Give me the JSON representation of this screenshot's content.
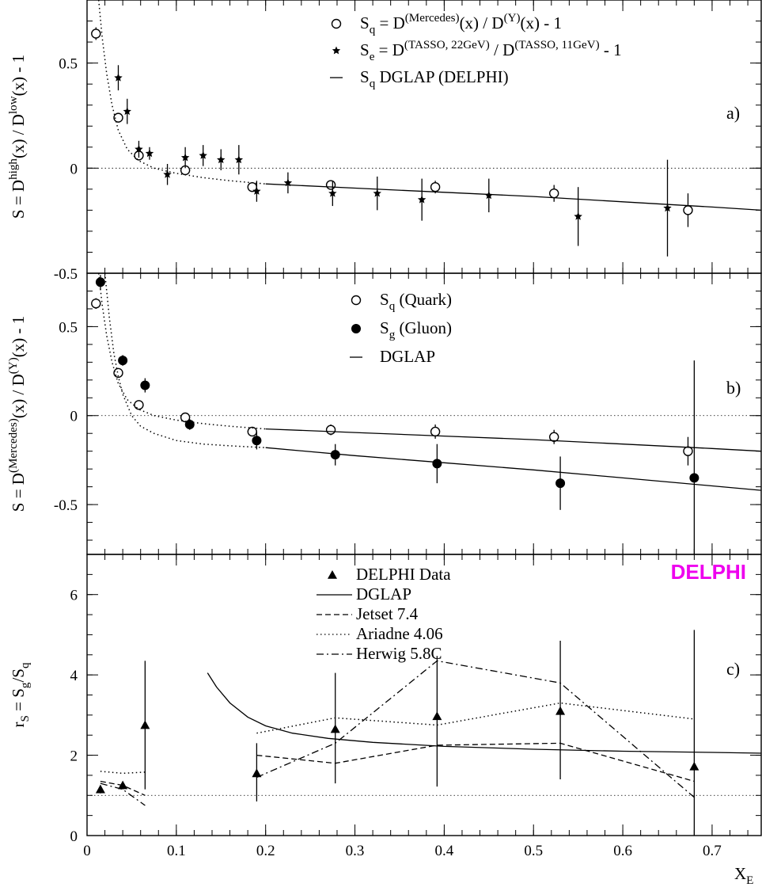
{
  "chart_data": [
    {
      "type": "scatter",
      "panel_label": "a)",
      "ylabel_html": "S = D<sup>high</sup>(x) / D<sup>low</sup>(x) - 1",
      "yticks": [
        "0.5",
        "0",
        "-0.5"
      ],
      "ylim": [
        -0.5,
        0.8
      ],
      "xlim": [
        0,
        0.755
      ],
      "legend": [
        {
          "marker": "open-circle",
          "html": "S<sub>q</sub> = D<sup>(Mercedes)</sup>(x) / D<sup>(Y)</sup>(x) - 1"
        },
        {
          "marker": "star",
          "html": "S<sub>e</sub> = D<sup>(TASSO, 22GeV)</sup> / D<sup>(TASSO, 11GeV)</sup> - 1"
        },
        {
          "marker": "solid-line",
          "html": "S<sub>q</sub>  DGLAP (DELPHI)"
        }
      ],
      "series": [
        {
          "name": "S_q = D(Mercedes)(x) / D(Y)(x) - 1",
          "marker": "open-circle",
          "x": [
            0.01,
            0.035,
            0.058,
            0.11,
            0.185,
            0.273,
            0.39,
            0.523,
            0.673
          ],
          "y": [
            0.64,
            0.24,
            0.06,
            -0.01,
            -0.09,
            -0.08,
            -0.09,
            -0.12,
            -0.2
          ],
          "err": [
            0.03,
            0.02,
            0.02,
            0.02,
            0.02,
            0.02,
            0.03,
            0.04,
            0.08
          ]
        },
        {
          "name": "S_e = D(TASSO, 22GeV) / D(TASSO, 11GeV) - 1",
          "marker": "star",
          "x": [
            0.035,
            0.045,
            0.058,
            0.07,
            0.09,
            0.11,
            0.13,
            0.15,
            0.17,
            0.19,
            0.225,
            0.275,
            0.325,
            0.375,
            0.45,
            0.55,
            0.65
          ],
          "y": [
            0.43,
            0.27,
            0.09,
            0.07,
            -0.03,
            0.05,
            0.06,
            0.04,
            0.04,
            -0.11,
            -0.07,
            -0.12,
            -0.12,
            -0.15,
            -0.13,
            -0.23,
            -0.19
          ],
          "err": [
            0.06,
            0.06,
            0.04,
            0.03,
            0.05,
            0.05,
            0.05,
            0.05,
            0.07,
            0.05,
            0.05,
            0.06,
            0.08,
            0.1,
            0.08,
            0.14,
            0.23
          ]
        },
        {
          "name": "S_q DGLAP (DELPHI)",
          "style": "solid",
          "x": [
            0.2,
            0.3,
            0.4,
            0.5,
            0.6,
            0.7,
            0.755
          ],
          "y": [
            -0.075,
            -0.095,
            -0.115,
            -0.135,
            -0.16,
            -0.185,
            -0.2
          ]
        },
        {
          "name": "S_q curve",
          "style": "dotted",
          "x": [
            0.013,
            0.017,
            0.022,
            0.028,
            0.035,
            0.045,
            0.058,
            0.075,
            0.1,
            0.13,
            0.16,
            0.2
          ],
          "y": [
            0.8,
            0.62,
            0.45,
            0.3,
            0.18,
            0.09,
            0.035,
            0.0,
            -0.025,
            -0.045,
            -0.06,
            -0.075
          ]
        }
      ]
    },
    {
      "type": "scatter",
      "panel_label": "b)",
      "ylabel_html": "S = D<sup>(Mercedes)</sup>(x) / D<sup>(Y)</sup>(x) - 1",
      "yticks": [
        "0.5",
        "0",
        "-0.5"
      ],
      "ylim": [
        -0.78,
        0.8
      ],
      "xlim": [
        0,
        0.755
      ],
      "legend": [
        {
          "marker": "open-circle",
          "html": "S<sub>q</sub> (Quark)"
        },
        {
          "marker": "filled-circle",
          "html": "S<sub>g</sub> (Gluon)"
        },
        {
          "marker": "solid-line",
          "html": "DGLAP"
        }
      ],
      "series": [
        {
          "name": "S_q (Quark)",
          "marker": "open-circle",
          "x": [
            0.01,
            0.035,
            0.058,
            0.11,
            0.185,
            0.273,
            0.39,
            0.523,
            0.673
          ],
          "y": [
            0.63,
            0.24,
            0.06,
            -0.01,
            -0.09,
            -0.08,
            -0.09,
            -0.12,
            -0.2
          ],
          "err": [
            0.03,
            0.02,
            0.02,
            0.02,
            0.02,
            0.03,
            0.04,
            0.04,
            0.08
          ]
        },
        {
          "name": "S_g (Gluon)",
          "marker": "filled-circle",
          "x": [
            0.015,
            0.04,
            0.065,
            0.115,
            0.19,
            0.278,
            0.392,
            0.53,
            0.68
          ],
          "y": [
            0.75,
            0.31,
            0.17,
            -0.05,
            -0.14,
            -0.22,
            -0.27,
            -0.38,
            -0.35
          ],
          "err": [
            0.04,
            0.03,
            0.04,
            0.03,
            0.05,
            0.06,
            0.11,
            0.15,
            0.66
          ]
        },
        {
          "name": "DGLAP quark",
          "style": "solid",
          "x": [
            0.2,
            0.3,
            0.4,
            0.5,
            0.6,
            0.7,
            0.755
          ],
          "y": [
            -0.075,
            -0.095,
            -0.115,
            -0.135,
            -0.16,
            -0.185,
            -0.2
          ]
        },
        {
          "name": "DGLAP gluon",
          "style": "solid",
          "x": [
            0.2,
            0.3,
            0.4,
            0.5,
            0.6,
            0.7,
            0.755
          ],
          "y": [
            -0.18,
            -0.225,
            -0.265,
            -0.305,
            -0.35,
            -0.395,
            -0.42
          ]
        },
        {
          "name": "quark curve",
          "style": "dotted",
          "x": [
            0.013,
            0.017,
            0.022,
            0.028,
            0.035,
            0.045,
            0.058,
            0.075,
            0.1,
            0.13,
            0.16,
            0.2
          ],
          "y": [
            0.8,
            0.62,
            0.45,
            0.3,
            0.18,
            0.09,
            0.035,
            0.0,
            -0.025,
            -0.045,
            -0.06,
            -0.075
          ]
        },
        {
          "name": "gluon curve",
          "style": "dotted",
          "x": [
            0.02,
            0.025,
            0.03,
            0.035,
            0.04,
            0.05,
            0.06,
            0.075,
            0.1,
            0.13,
            0.16,
            0.2
          ],
          "y": [
            0.8,
            0.55,
            0.35,
            0.22,
            0.12,
            0.0,
            -0.06,
            -0.1,
            -0.14,
            -0.16,
            -0.17,
            -0.18
          ]
        }
      ]
    },
    {
      "type": "line",
      "panel_label": "c)",
      "ylabel_html": "r<sub>S</sub> = S<sub>g</sub>/S<sub>q</sub>",
      "yticks": [
        "0",
        "2",
        "4",
        "6"
      ],
      "ylim": [
        0,
        7
      ],
      "xlim": [
        0,
        0.755
      ],
      "xticks": [
        "0",
        "0.1",
        "0.2",
        "0.3",
        "0.4",
        "0.5",
        "0.6",
        "0.7"
      ],
      "xlabel_html": "X<sub>E</sub>",
      "brand": "DELPHI",
      "brand_color": "#ee00ee",
      "legend": [
        {
          "marker": "triangle",
          "html": "DELPHI Data"
        },
        {
          "marker": "solid-line",
          "html": "DGLAP"
        },
        {
          "marker": "dashed-line",
          "html": "Jetset 7.4"
        },
        {
          "marker": "dotted-line",
          "html": "Ariadne 4.06"
        },
        {
          "marker": "dashdot-line",
          "html": "Herwig 5.8C"
        }
      ],
      "series": [
        {
          "name": "DELPHI Data",
          "marker": "triangle",
          "x": [
            0.015,
            0.04,
            0.065,
            0.19,
            0.278,
            0.392,
            0.53,
            0.68
          ],
          "y": [
            1.15,
            1.25,
            2.75,
            1.55,
            2.65,
            2.97,
            3.1,
            1.72
          ],
          "err_up": [
            0.1,
            0.1,
            1.6,
            0.75,
            1.4,
            1.5,
            1.75,
            3.4
          ],
          "err_down": [
            0.1,
            0.1,
            1.6,
            0.7,
            1.35,
            1.75,
            1.7,
            1.72
          ]
        },
        {
          "name": "DGLAP",
          "style": "solid",
          "x": [
            0.135,
            0.145,
            0.16,
            0.18,
            0.2,
            0.23,
            0.27,
            0.32,
            0.4,
            0.5,
            0.6,
            0.7,
            0.755
          ],
          "y": [
            4.05,
            3.7,
            3.3,
            2.95,
            2.73,
            2.55,
            2.42,
            2.32,
            2.22,
            2.15,
            2.1,
            2.07,
            2.05
          ]
        },
        {
          "name": "Jetset 7.4 (low x)",
          "style": "dashed",
          "x": [
            0.015,
            0.04,
            0.065
          ],
          "y": [
            1.35,
            1.25,
            1.0
          ]
        },
        {
          "name": "Jetset 7.4",
          "style": "dashed",
          "x": [
            0.19,
            0.278,
            0.392,
            0.53,
            0.68
          ],
          "y": [
            2.0,
            1.8,
            2.25,
            2.3,
            1.35
          ]
        },
        {
          "name": "Ariadne 4.06 (low x)",
          "style": "dotted",
          "x": [
            0.015,
            0.04,
            0.065
          ],
          "y": [
            1.6,
            1.55,
            1.58
          ]
        },
        {
          "name": "Ariadne 4.06",
          "style": "dotted",
          "x": [
            0.19,
            0.278,
            0.392,
            0.53,
            0.68
          ],
          "y": [
            2.55,
            2.93,
            2.75,
            3.3,
            2.9
          ]
        },
        {
          "name": "Herwig 5.8C (low x)",
          "style": "dashdot",
          "x": [
            0.015,
            0.04,
            0.065
          ],
          "y": [
            1.3,
            1.15,
            0.75
          ]
        },
        {
          "name": "Herwig 5.8C",
          "style": "dashdot",
          "x": [
            0.19,
            0.278,
            0.392,
            0.53,
            0.68
          ],
          "y": [
            1.45,
            2.3,
            4.35,
            3.8,
            0.95
          ]
        }
      ]
    }
  ]
}
